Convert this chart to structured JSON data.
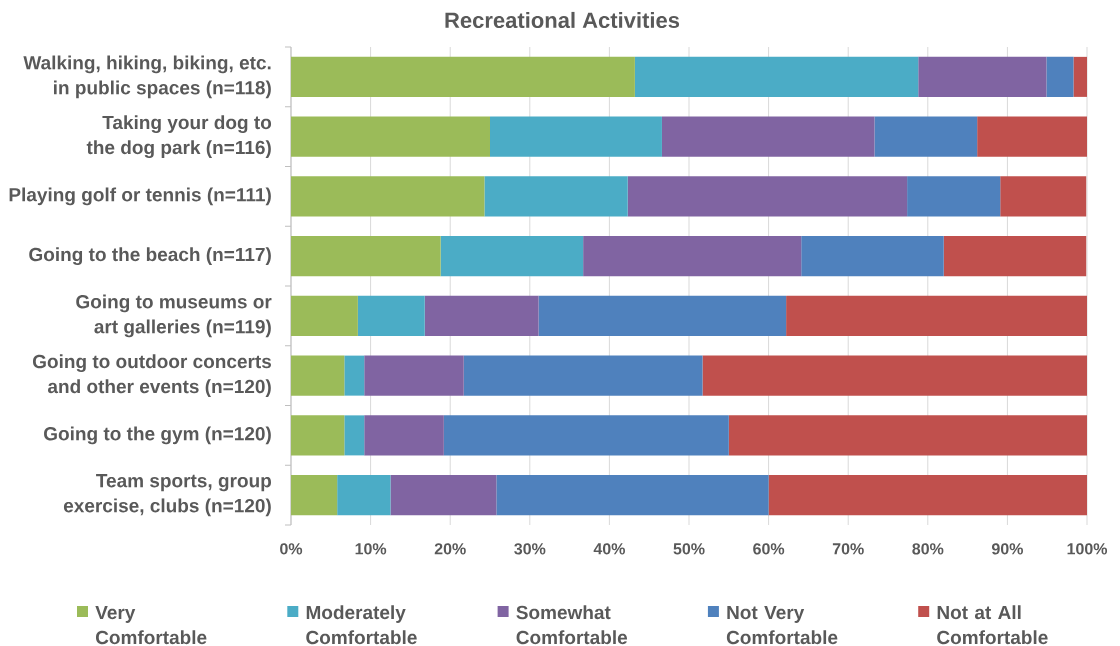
{
  "chart_data": {
    "type": "bar",
    "orientation": "horizontal",
    "stacked": true,
    "title": "Recreational Activities",
    "categories": [
      "Walking, hiking, biking, etc. in public spaces (n=118)",
      "Taking your dog to the dog park (n=116)",
      "Playing golf or tennis (n=111)",
      "Going to the beach (n=117)",
      "Going to museums or art galleries (n=119)",
      "Going to outdoor concerts and other events (n=120)",
      "Going to the gym (n=120)",
      "Team sports, group exercise, clubs (n=120)"
    ],
    "series": [
      {
        "name": "Very Comfortable",
        "color": "#9bbb59",
        "values": [
          43.2,
          25.0,
          24.3,
          18.8,
          8.4,
          6.7,
          6.7,
          5.8
        ]
      },
      {
        "name": "Moderately Comfortable",
        "color": "#4bacc6",
        "values": [
          35.6,
          21.6,
          18.0,
          17.9,
          8.4,
          2.5,
          2.5,
          6.7
        ]
      },
      {
        "name": "Somewhat Comfortable",
        "color": "#8064a2",
        "values": [
          16.1,
          26.7,
          35.1,
          27.4,
          14.3,
          12.5,
          10.0,
          13.3
        ]
      },
      {
        "name": "Not Very Comfortable",
        "color": "#4f81bd",
        "values": [
          3.4,
          12.9,
          11.7,
          17.9,
          31.1,
          30.0,
          35.8,
          34.2
        ]
      },
      {
        "name": "Not at All Comfortable",
        "color": "#c0504d",
        "values": [
          1.7,
          13.8,
          10.8,
          17.9,
          37.8,
          48.3,
          45.0,
          40.0
        ]
      }
    ],
    "xlim": [
      0,
      100
    ],
    "xticks": [
      {
        "value": 0,
        "label": "0%"
      },
      {
        "value": 10,
        "label": "10%"
      },
      {
        "value": 20,
        "label": "20%"
      },
      {
        "value": 30,
        "label": "30%"
      },
      {
        "value": 40,
        "label": "40%"
      },
      {
        "value": 50,
        "label": "50%"
      },
      {
        "value": 60,
        "label": "60%"
      },
      {
        "value": 70,
        "label": "70%"
      },
      {
        "value": 80,
        "label": "80%"
      },
      {
        "value": 90,
        "label": "90%"
      },
      {
        "value": 100,
        "label": "100%"
      }
    ],
    "grid": "x",
    "legend": "bottom"
  }
}
